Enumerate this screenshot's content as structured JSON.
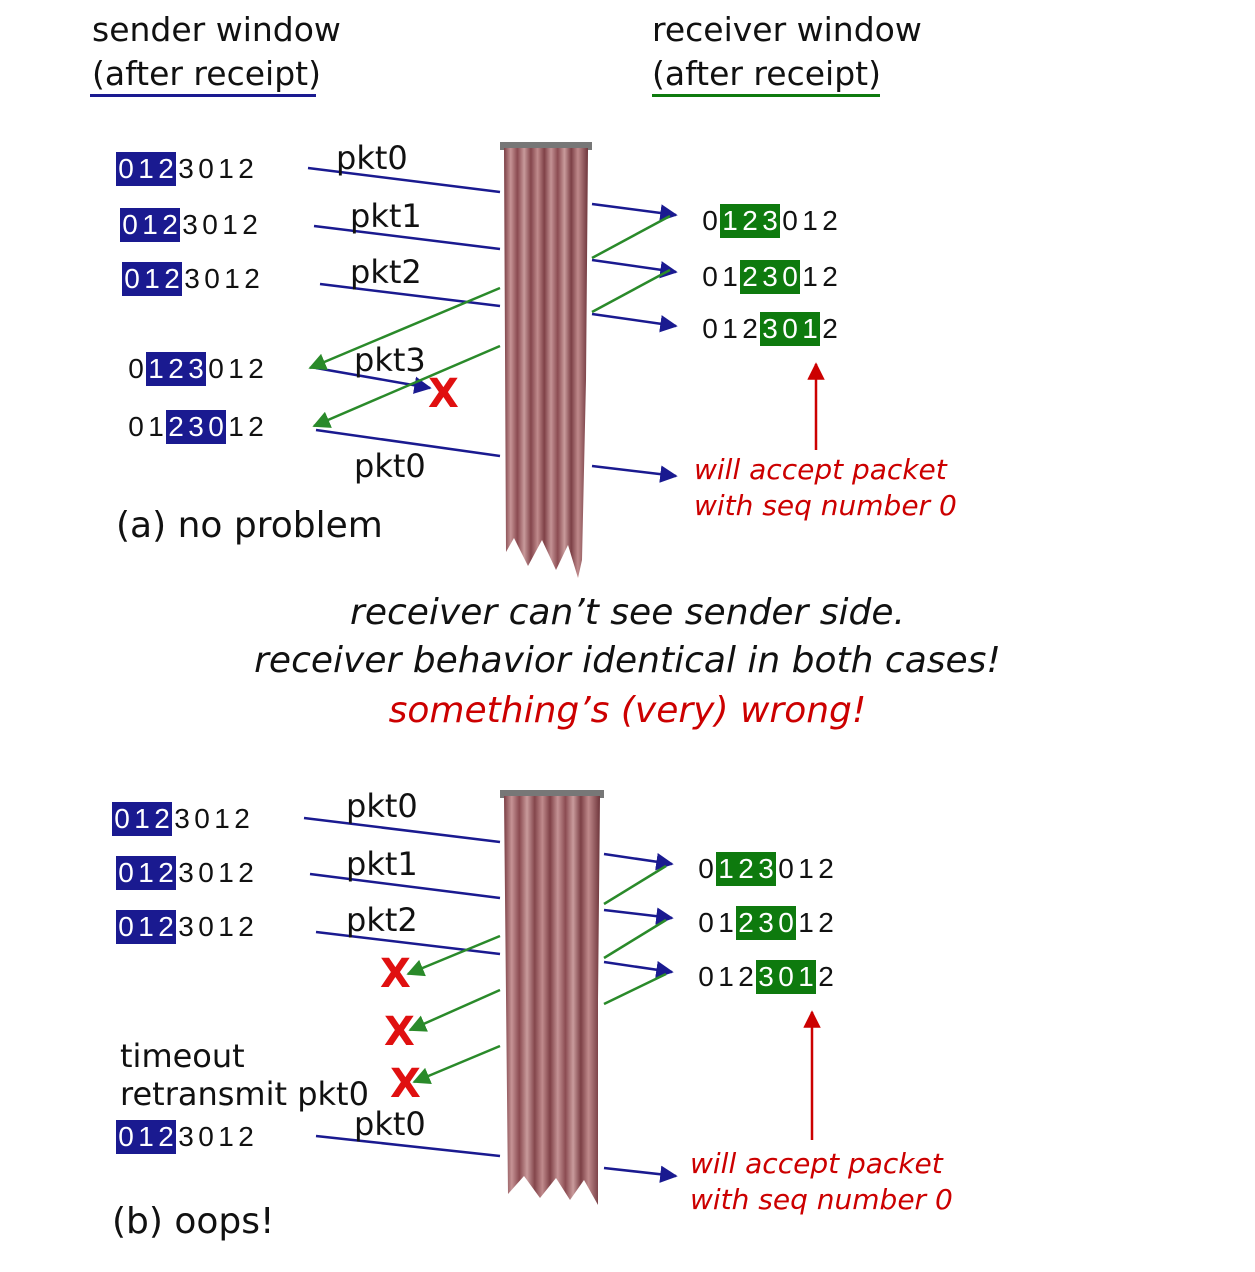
{
  "header": {
    "sender_line1": "sender window",
    "sender_line2": "(after receipt)",
    "receiver_line1": "receiver window",
    "receiver_line2": "(after receipt)"
  },
  "panel_a": {
    "caption": "(a) no problem",
    "packets": [
      "pkt0",
      "pkt1",
      "pkt2",
      "pkt3",
      "pkt0"
    ],
    "note_line1": "will accept packet",
    "note_line2": "with seq number 0"
  },
  "middle": {
    "line1": "receiver can’t see sender side.",
    "line2": "receiver behavior identical in both cases!",
    "line3": "something’s (very) wrong!"
  },
  "panel_b": {
    "caption": "(b) oops!",
    "packets": [
      "pkt0",
      "pkt1",
      "pkt2",
      "pkt0"
    ],
    "timeout_line1": "timeout",
    "timeout_line2": "retransmit pkt0",
    "note_line1": "will accept packet",
    "note_line2": "with seq number 0"
  },
  "loss_mark": "X",
  "sequence": [
    "0",
    "1",
    "2",
    "3",
    "0",
    "1",
    "2"
  ],
  "colors": {
    "sender_window": "#1a1a90",
    "receiver_window": "#0e7a0e",
    "sender_arrow": "#1a1a90",
    "ack_arrow": "#2a8a2a",
    "loss": "#e01010",
    "note": "#cc0000",
    "curtain": "#a8696a"
  }
}
